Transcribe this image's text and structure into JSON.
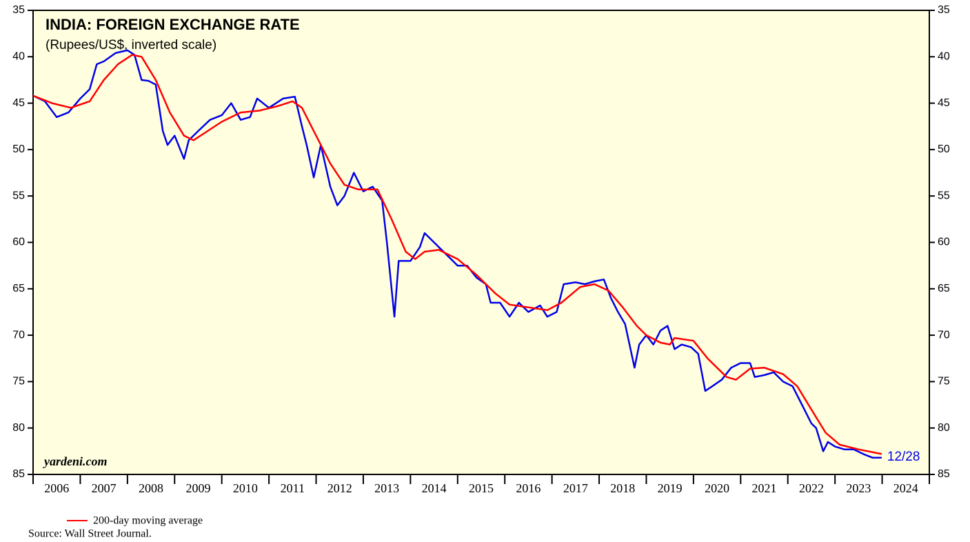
{
  "chart_data": {
    "type": "line",
    "title": "INDIA: FOREIGN EXCHANGE RATE",
    "subtitle": "(Rupees/US$, inverted scale)",
    "watermark": "yardeni.com",
    "end_label": "12/28",
    "source": "Source: Wall Street Journal.",
    "background": "#ffffe0",
    "y_inverted": true,
    "ylim": [
      35,
      85
    ],
    "yticks": [
      35,
      40,
      45,
      50,
      55,
      60,
      65,
      70,
      75,
      80,
      85
    ],
    "xlim": [
      2006,
      2025
    ],
    "xticks": [
      2006,
      2007,
      2008,
      2009,
      2010,
      2011,
      2012,
      2013,
      2014,
      2015,
      2016,
      2017,
      2018,
      2019,
      2020,
      2021,
      2022,
      2023,
      2024,
      2025
    ],
    "year_labels": [
      "2006",
      "2007",
      "2008",
      "2009",
      "2010",
      "2011",
      "2012",
      "2013",
      "2014",
      "2015",
      "2016",
      "2017",
      "2018",
      "2019",
      "2020",
      "2021",
      "2022",
      "2023",
      "2024"
    ],
    "series": [
      {
        "color": "#0000e6",
        "x": [
          2006.0,
          2006.25,
          2006.5,
          2006.75,
          2007.0,
          2007.2,
          2007.35,
          2007.5,
          2007.75,
          2008.0,
          2008.15,
          2008.3,
          2008.45,
          2008.6,
          2008.75,
          2008.85,
          2009.0,
          2009.2,
          2009.3,
          2009.5,
          2009.75,
          2010.0,
          2010.2,
          2010.4,
          2010.6,
          2010.75,
          2011.0,
          2011.3,
          2011.55,
          2011.7,
          2011.8,
          2011.95,
          2012.1,
          2012.3,
          2012.45,
          2012.6,
          2012.8,
          2013.0,
          2013.2,
          2013.4,
          2013.5,
          2013.6,
          2013.66,
          2013.75,
          2013.9,
          2014.0,
          2014.2,
          2014.3,
          2014.5,
          2014.8,
          2015.0,
          2015.2,
          2015.4,
          2015.6,
          2015.7,
          2015.9,
          2016.1,
          2016.3,
          2016.5,
          2016.75,
          2016.9,
          2017.1,
          2017.25,
          2017.5,
          2017.7,
          2017.9,
          2018.1,
          2018.25,
          2018.4,
          2018.55,
          2018.75,
          2018.85,
          2019.0,
          2019.15,
          2019.3,
          2019.45,
          2019.6,
          2019.75,
          2019.95,
          2020.1,
          2020.25,
          2020.4,
          2020.6,
          2020.8,
          2021.0,
          2021.2,
          2021.3,
          2021.5,
          2021.7,
          2021.9,
          2022.1,
          2022.3,
          2022.5,
          2022.6,
          2022.75,
          2022.85,
          2023.0,
          2023.2,
          2023.4,
          2023.6,
          2023.8,
          2023.99
        ],
        "values": [
          44.2,
          44.8,
          46.5,
          46.0,
          44.5,
          43.5,
          40.8,
          40.5,
          39.6,
          39.3,
          39.8,
          42.5,
          42.6,
          43.0,
          48.0,
          49.5,
          48.5,
          51.0,
          49.0,
          48.0,
          46.8,
          46.3,
          45.0,
          46.8,
          46.5,
          44.5,
          45.5,
          44.5,
          44.3,
          47.5,
          49.5,
          53.0,
          49.5,
          54.0,
          56.0,
          55.0,
          52.5,
          54.5,
          54.0,
          55.5,
          60.0,
          65.0,
          68.0,
          62.0,
          62.0,
          62.0,
          60.5,
          59.0,
          60.0,
          61.5,
          62.5,
          62.5,
          63.8,
          64.5,
          66.5,
          66.5,
          68.0,
          66.5,
          67.5,
          66.8,
          68.0,
          67.5,
          64.5,
          64.3,
          64.5,
          64.2,
          64.0,
          66.0,
          67.5,
          68.8,
          73.5,
          71.0,
          70.0,
          71.0,
          69.5,
          69.0,
          71.5,
          71.0,
          71.3,
          72.0,
          76.0,
          75.5,
          74.8,
          73.5,
          73.0,
          73.0,
          74.5,
          74.3,
          74.0,
          75.0,
          75.5,
          77.5,
          79.5,
          80.0,
          82.5,
          81.5,
          82.0,
          82.3,
          82.3,
          82.8,
          83.2,
          83.2
        ]
      },
      {
        "name": "200-day moving average",
        "color": "#ff0000",
        "x": [
          2006.0,
          2006.4,
          2006.8,
          2007.2,
          2007.5,
          2007.8,
          2008.1,
          2008.3,
          2008.6,
          2008.9,
          2009.2,
          2009.4,
          2009.7,
          2010.0,
          2010.4,
          2010.8,
          2011.2,
          2011.5,
          2011.7,
          2012.0,
          2012.3,
          2012.6,
          2012.9,
          2013.3,
          2013.6,
          2013.9,
          2014.1,
          2014.3,
          2014.6,
          2015.0,
          2015.4,
          2015.8,
          2016.1,
          2016.5,
          2016.9,
          2017.2,
          2017.6,
          2017.9,
          2018.2,
          2018.5,
          2018.8,
          2019.0,
          2019.3,
          2019.5,
          2019.6,
          2020.0,
          2020.3,
          2020.7,
          2020.9,
          2021.2,
          2021.5,
          2021.9,
          2022.2,
          2022.5,
          2022.8,
          2023.1,
          2023.5,
          2023.99
        ],
        "values": [
          44.2,
          45.0,
          45.5,
          44.8,
          42.5,
          40.8,
          39.8,
          40.0,
          42.5,
          46.0,
          48.5,
          49.0,
          48.0,
          47.0,
          46.0,
          45.8,
          45.3,
          44.8,
          45.5,
          48.5,
          51.5,
          53.8,
          54.3,
          54.3,
          57.5,
          61.0,
          61.8,
          61.0,
          60.8,
          61.8,
          63.5,
          65.5,
          66.7,
          67.0,
          67.3,
          66.5,
          64.8,
          64.5,
          65.2,
          67.0,
          69.0,
          70.0,
          70.8,
          71.0,
          70.3,
          70.6,
          72.5,
          74.5,
          74.8,
          73.6,
          73.5,
          74.2,
          75.5,
          78.0,
          80.5,
          81.8,
          82.3,
          82.8
        ]
      }
    ]
  }
}
